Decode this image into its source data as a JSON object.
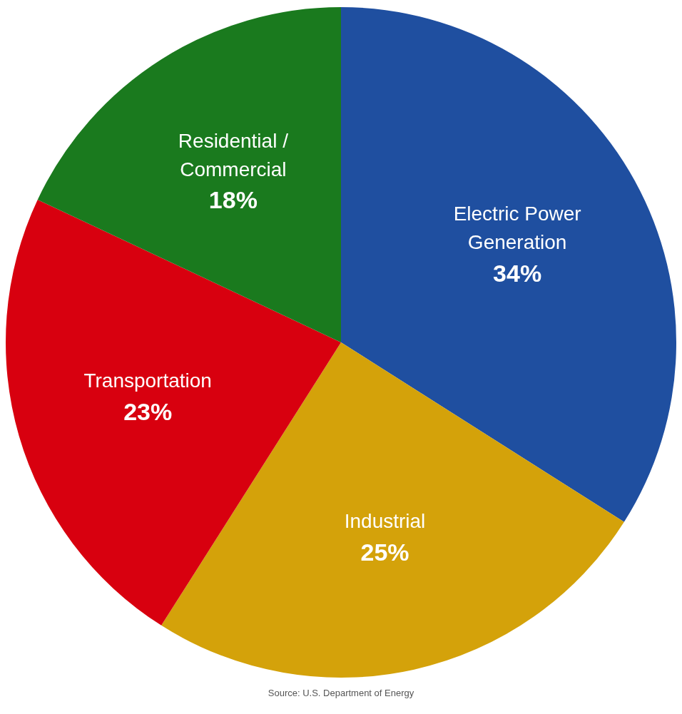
{
  "chart_data": {
    "type": "pie",
    "categories": [
      "Electric Power Generation",
      "Industrial",
      "Transportation",
      "Residential / Commercial"
    ],
    "values": [
      34,
      25,
      23,
      18
    ],
    "value_labels": [
      "34%",
      "25%",
      "23%",
      "18%"
    ],
    "colors": [
      "#1f4fa0",
      "#d4a20a",
      "#d8000f",
      "#1a7a1e"
    ],
    "annotations": [
      "Source: U.S. Department of Energy"
    ]
  }
}
